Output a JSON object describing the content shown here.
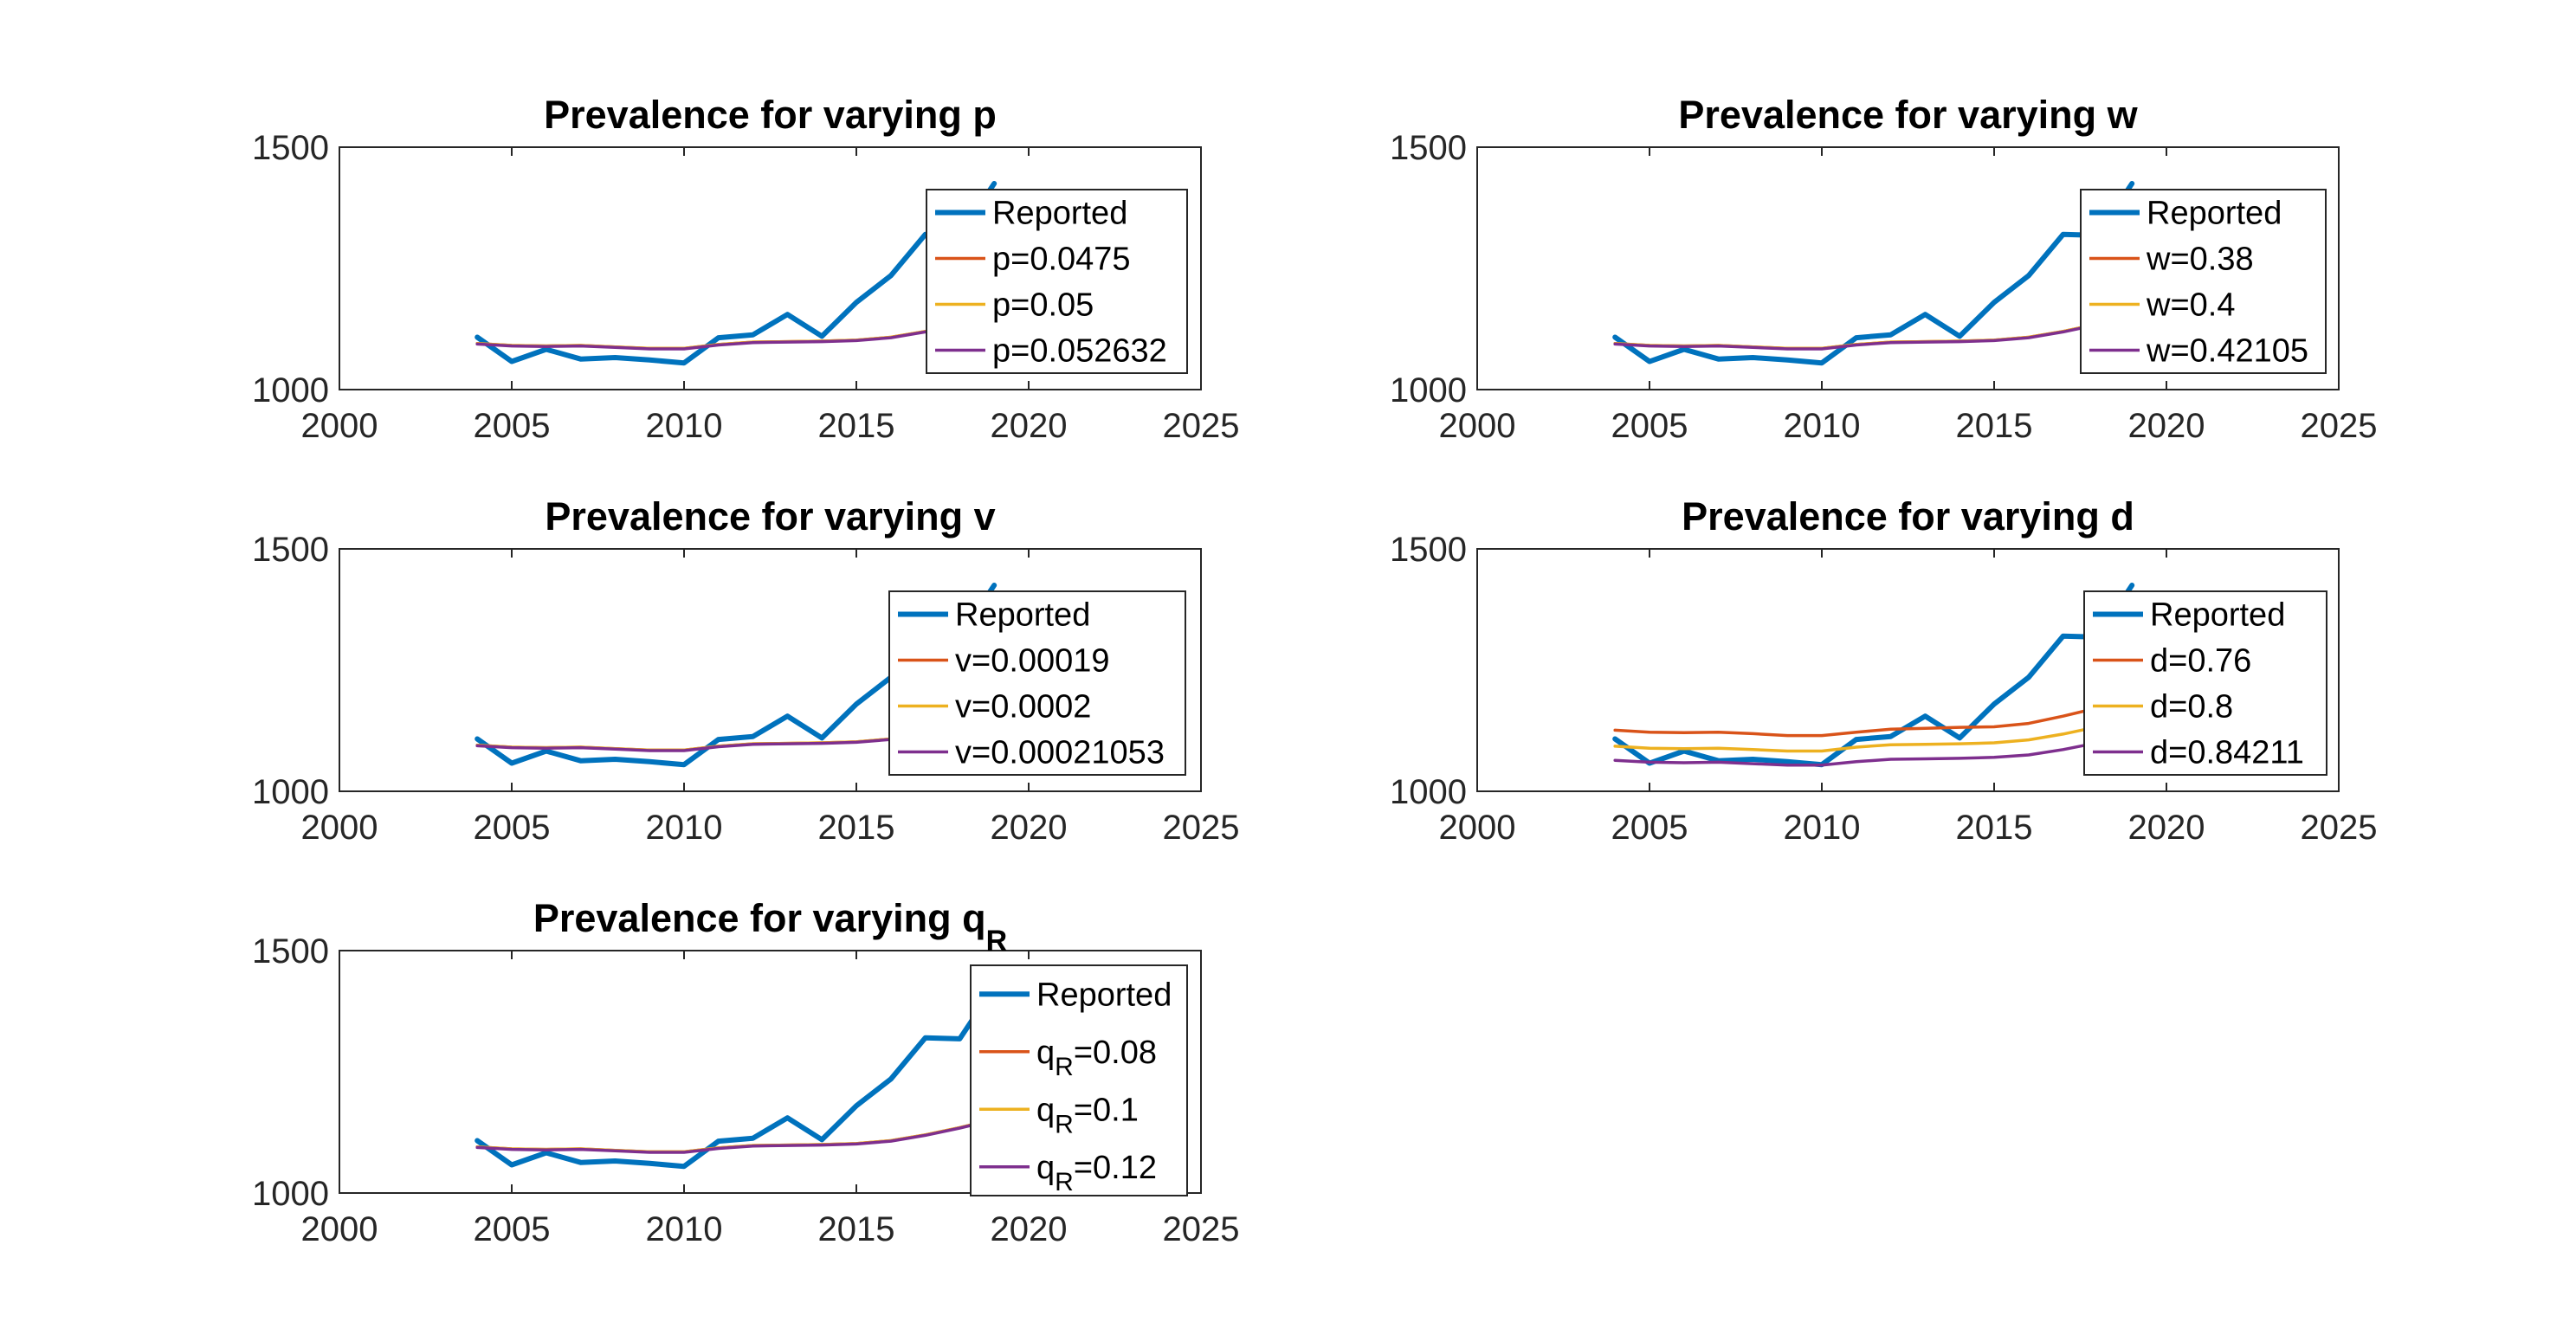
{
  "figure": {
    "background": "#ffffff"
  },
  "colors": {
    "reported": "#0072BD",
    "low": "#D95319",
    "mid": "#EDB120",
    "high": "#7E2F8E",
    "axis": "#262626"
  },
  "chart_data": [
    {
      "type": "line",
      "title": {
        "main": "Prevalence for varying p",
        "sub": ""
      },
      "xlim": [
        2000,
        2025
      ],
      "ylim": [
        1000,
        1500
      ],
      "xticks": [
        "2000",
        "2005",
        "2010",
        "2015",
        "2020",
        "2025"
      ],
      "yticks": [
        "1000",
        "1500"
      ],
      "legend_position": "top-right",
      "series": [
        {
          "name": "Reported",
          "label": {
            "main": "Reported"
          },
          "color": "#0072BD",
          "thick": true,
          "x": [
            2004,
            2005,
            2006,
            2007,
            2008,
            2009,
            2010,
            2011,
            2012,
            2013,
            2014,
            2015,
            2016,
            2017,
            2018,
            2019
          ],
          "y": [
            1108,
            1058,
            1083,
            1063,
            1066,
            1061,
            1055,
            1107,
            1113,
            1155,
            1110,
            1180,
            1235,
            1320,
            1318,
            1425
          ]
        },
        {
          "name": "p=0.0475",
          "label": {
            "main": "p=0.0475"
          },
          "color": "#D95319",
          "x": [
            2004,
            2005,
            2006,
            2007,
            2008,
            2009,
            2010,
            2011,
            2012,
            2013,
            2014,
            2015,
            2016,
            2017,
            2018,
            2019
          ],
          "y": [
            1095,
            1091,
            1090,
            1091,
            1088,
            1085,
            1085,
            1093,
            1098,
            1099,
            1100,
            1102,
            1108,
            1120,
            1135,
            1152
          ]
        },
        {
          "name": "p=0.05",
          "label": {
            "main": "p=0.05"
          },
          "color": "#EDB120",
          "x": [
            2004,
            2005,
            2006,
            2007,
            2008,
            2009,
            2010,
            2011,
            2012,
            2013,
            2014,
            2015,
            2016,
            2017,
            2018,
            2019
          ],
          "y": [
            1095,
            1091,
            1090,
            1091,
            1088,
            1085,
            1085,
            1093,
            1098,
            1099,
            1100,
            1102,
            1108,
            1120,
            1135,
            1152
          ]
        },
        {
          "name": "p=0.052632",
          "label": {
            "main": "p=0.052632"
          },
          "color": "#7E2F8E",
          "x": [
            2004,
            2005,
            2006,
            2007,
            2008,
            2009,
            2010,
            2011,
            2012,
            2013,
            2014,
            2015,
            2016,
            2017,
            2018,
            2019
          ],
          "y": [
            1094,
            1090,
            1089,
            1090,
            1087,
            1084,
            1084,
            1092,
            1097,
            1098,
            1099,
            1101,
            1107,
            1119,
            1134,
            1151
          ]
        }
      ]
    },
    {
      "type": "line",
      "title": {
        "main": "Prevalence for varying w",
        "sub": ""
      },
      "xlim": [
        2000,
        2025
      ],
      "ylim": [
        1000,
        1500
      ],
      "xticks": [
        "2000",
        "2005",
        "2010",
        "2015",
        "2020",
        "2025"
      ],
      "yticks": [
        "1000",
        "1500"
      ],
      "legend_position": "top-right",
      "series": [
        {
          "name": "Reported",
          "label": {
            "main": "Reported"
          },
          "color": "#0072BD",
          "thick": true,
          "x": [
            2004,
            2005,
            2006,
            2007,
            2008,
            2009,
            2010,
            2011,
            2012,
            2013,
            2014,
            2015,
            2016,
            2017,
            2018,
            2019
          ],
          "y": [
            1108,
            1058,
            1083,
            1063,
            1066,
            1061,
            1055,
            1107,
            1113,
            1155,
            1110,
            1180,
            1235,
            1320,
            1318,
            1425
          ]
        },
        {
          "name": "w=0.38",
          "label": {
            "main": "w=0.38"
          },
          "color": "#D95319",
          "x": [
            2004,
            2005,
            2006,
            2007,
            2008,
            2009,
            2010,
            2011,
            2012,
            2013,
            2014,
            2015,
            2016,
            2017,
            2018,
            2019
          ],
          "y": [
            1095,
            1091,
            1090,
            1091,
            1088,
            1085,
            1085,
            1093,
            1098,
            1099,
            1100,
            1102,
            1108,
            1120,
            1135,
            1152
          ]
        },
        {
          "name": "w=0.4",
          "label": {
            "main": "w=0.4"
          },
          "color": "#EDB120",
          "x": [
            2004,
            2005,
            2006,
            2007,
            2008,
            2009,
            2010,
            2011,
            2012,
            2013,
            2014,
            2015,
            2016,
            2017,
            2018,
            2019
          ],
          "y": [
            1095,
            1091,
            1090,
            1091,
            1088,
            1085,
            1085,
            1093,
            1098,
            1099,
            1100,
            1102,
            1108,
            1120,
            1135,
            1152
          ]
        },
        {
          "name": "w=0.42105",
          "label": {
            "main": "w=0.42105"
          },
          "color": "#7E2F8E",
          "x": [
            2004,
            2005,
            2006,
            2007,
            2008,
            2009,
            2010,
            2011,
            2012,
            2013,
            2014,
            2015,
            2016,
            2017,
            2018,
            2019
          ],
          "y": [
            1094,
            1090,
            1089,
            1090,
            1087,
            1084,
            1084,
            1092,
            1097,
            1098,
            1099,
            1101,
            1107,
            1119,
            1134,
            1151
          ]
        }
      ]
    },
    {
      "type": "line",
      "title": {
        "main": "Prevalence for varying v",
        "sub": ""
      },
      "xlim": [
        2000,
        2025
      ],
      "ylim": [
        1000,
        1500
      ],
      "xticks": [
        "2000",
        "2005",
        "2010",
        "2015",
        "2020",
        "2025"
      ],
      "yticks": [
        "1000",
        "1500"
      ],
      "legend_position": "top-right",
      "series": [
        {
          "name": "Reported",
          "label": {
            "main": "Reported"
          },
          "color": "#0072BD",
          "thick": true,
          "x": [
            2004,
            2005,
            2006,
            2007,
            2008,
            2009,
            2010,
            2011,
            2012,
            2013,
            2014,
            2015,
            2016,
            2017,
            2018,
            2019
          ],
          "y": [
            1108,
            1058,
            1083,
            1063,
            1066,
            1061,
            1055,
            1107,
            1113,
            1155,
            1110,
            1180,
            1235,
            1320,
            1318,
            1425
          ]
        },
        {
          "name": "v=0.00019",
          "label": {
            "main": "v=0.00019"
          },
          "color": "#D95319",
          "x": [
            2004,
            2005,
            2006,
            2007,
            2008,
            2009,
            2010,
            2011,
            2012,
            2013,
            2014,
            2015,
            2016,
            2017,
            2018,
            2019
          ],
          "y": [
            1095,
            1091,
            1090,
            1091,
            1088,
            1085,
            1085,
            1093,
            1098,
            1099,
            1100,
            1102,
            1108,
            1120,
            1135,
            1152
          ]
        },
        {
          "name": "v=0.0002",
          "label": {
            "main": "v=0.0002"
          },
          "color": "#EDB120",
          "x": [
            2004,
            2005,
            2006,
            2007,
            2008,
            2009,
            2010,
            2011,
            2012,
            2013,
            2014,
            2015,
            2016,
            2017,
            2018,
            2019
          ],
          "y": [
            1095,
            1091,
            1090,
            1091,
            1088,
            1085,
            1085,
            1093,
            1098,
            1099,
            1100,
            1102,
            1108,
            1120,
            1135,
            1152
          ]
        },
        {
          "name": "v=0.00021053",
          "label": {
            "main": "v=0.00021053"
          },
          "color": "#7E2F8E",
          "x": [
            2004,
            2005,
            2006,
            2007,
            2008,
            2009,
            2010,
            2011,
            2012,
            2013,
            2014,
            2015,
            2016,
            2017,
            2018,
            2019
          ],
          "y": [
            1094,
            1090,
            1089,
            1090,
            1087,
            1084,
            1084,
            1092,
            1097,
            1098,
            1099,
            1101,
            1107,
            1119,
            1134,
            1151
          ]
        }
      ]
    },
    {
      "type": "line",
      "title": {
        "main": "Prevalence for varying d",
        "sub": ""
      },
      "xlim": [
        2000,
        2025
      ],
      "ylim": [
        1000,
        1500
      ],
      "xticks": [
        "2000",
        "2005",
        "2010",
        "2015",
        "2020",
        "2025"
      ],
      "yticks": [
        "1000",
        "1500"
      ],
      "legend_position": "top-right",
      "series": [
        {
          "name": "Reported",
          "label": {
            "main": "Reported"
          },
          "color": "#0072BD",
          "thick": true,
          "x": [
            2004,
            2005,
            2006,
            2007,
            2008,
            2009,
            2010,
            2011,
            2012,
            2013,
            2014,
            2015,
            2016,
            2017,
            2018,
            2019
          ],
          "y": [
            1108,
            1058,
            1083,
            1063,
            1066,
            1061,
            1055,
            1107,
            1113,
            1155,
            1110,
            1180,
            1235,
            1320,
            1318,
            1425
          ]
        },
        {
          "name": "d=0.76",
          "label": {
            "main": "d=0.76"
          },
          "color": "#D95319",
          "x": [
            2004,
            2005,
            2006,
            2007,
            2008,
            2009,
            2010,
            2011,
            2012,
            2013,
            2014,
            2015,
            2016,
            2017,
            2018,
            2019
          ],
          "y": [
            1126,
            1122,
            1121,
            1122,
            1119,
            1115,
            1115,
            1122,
            1128,
            1130,
            1132,
            1133,
            1140,
            1155,
            1172,
            1190
          ]
        },
        {
          "name": "d=0.8",
          "label": {
            "main": "d=0.8"
          },
          "color": "#EDB120",
          "x": [
            2004,
            2005,
            2006,
            2007,
            2008,
            2009,
            2010,
            2011,
            2012,
            2013,
            2014,
            2015,
            2016,
            2017,
            2018,
            2019
          ],
          "y": [
            1093,
            1089,
            1088,
            1089,
            1086,
            1083,
            1083,
            1091,
            1096,
            1097,
            1098,
            1100,
            1106,
            1118,
            1133,
            1150
          ]
        },
        {
          "name": "d=0.84211",
          "label": {
            "main": "d=0.84211"
          },
          "color": "#7E2F8E",
          "x": [
            2004,
            2005,
            2006,
            2007,
            2008,
            2009,
            2010,
            2011,
            2012,
            2013,
            2014,
            2015,
            2016,
            2017,
            2018,
            2019
          ],
          "y": [
            1064,
            1060,
            1059,
            1060,
            1057,
            1054,
            1054,
            1061,
            1066,
            1067,
            1068,
            1070,
            1075,
            1086,
            1100,
            1115
          ]
        }
      ]
    },
    {
      "type": "line",
      "title": {
        "main": "Prevalence for varying q",
        "sub": "R"
      },
      "xlim": [
        2000,
        2025
      ],
      "ylim": [
        1000,
        1500
      ],
      "xticks": [
        "2000",
        "2005",
        "2010",
        "2015",
        "2020",
        "2025"
      ],
      "yticks": [
        "1000",
        "1500"
      ],
      "legend_position": "top-right",
      "series": [
        {
          "name": "Reported",
          "label": {
            "main": "Reported"
          },
          "color": "#0072BD",
          "thick": true,
          "x": [
            2004,
            2005,
            2006,
            2007,
            2008,
            2009,
            2010,
            2011,
            2012,
            2013,
            2014,
            2015,
            2016,
            2017,
            2018,
            2019
          ],
          "y": [
            1108,
            1058,
            1083,
            1063,
            1066,
            1061,
            1055,
            1107,
            1113,
            1155,
            1110,
            1180,
            1235,
            1320,
            1318,
            1425
          ]
        },
        {
          "name": "q_R=0.08",
          "label": {
            "main": "q",
            "sub": "R",
            "tail": "=0.08"
          },
          "color": "#D95319",
          "x": [
            2004,
            2005,
            2006,
            2007,
            2008,
            2009,
            2010,
            2011,
            2012,
            2013,
            2014,
            2015,
            2016,
            2017,
            2018,
            2019
          ],
          "y": [
            1095,
            1091,
            1090,
            1091,
            1088,
            1085,
            1085,
            1093,
            1098,
            1099,
            1100,
            1102,
            1108,
            1120,
            1135,
            1152
          ]
        },
        {
          "name": "q_R=0.1",
          "label": {
            "main": "q",
            "sub": "R",
            "tail": "=0.1"
          },
          "color": "#EDB120",
          "x": [
            2004,
            2005,
            2006,
            2007,
            2008,
            2009,
            2010,
            2011,
            2012,
            2013,
            2014,
            2015,
            2016,
            2017,
            2018,
            2019
          ],
          "y": [
            1095,
            1091,
            1090,
            1091,
            1088,
            1085,
            1085,
            1093,
            1098,
            1099,
            1100,
            1102,
            1108,
            1120,
            1135,
            1152
          ]
        },
        {
          "name": "q_R=0.12",
          "label": {
            "main": "q",
            "sub": "R",
            "tail": "=0.12"
          },
          "color": "#7E2F8E",
          "x": [
            2004,
            2005,
            2006,
            2007,
            2008,
            2009,
            2010,
            2011,
            2012,
            2013,
            2014,
            2015,
            2016,
            2017,
            2018,
            2019
          ],
          "y": [
            1094,
            1090,
            1089,
            1090,
            1087,
            1084,
            1084,
            1092,
            1097,
            1098,
            1099,
            1101,
            1107,
            1119,
            1134,
            1151
          ]
        }
      ]
    }
  ]
}
